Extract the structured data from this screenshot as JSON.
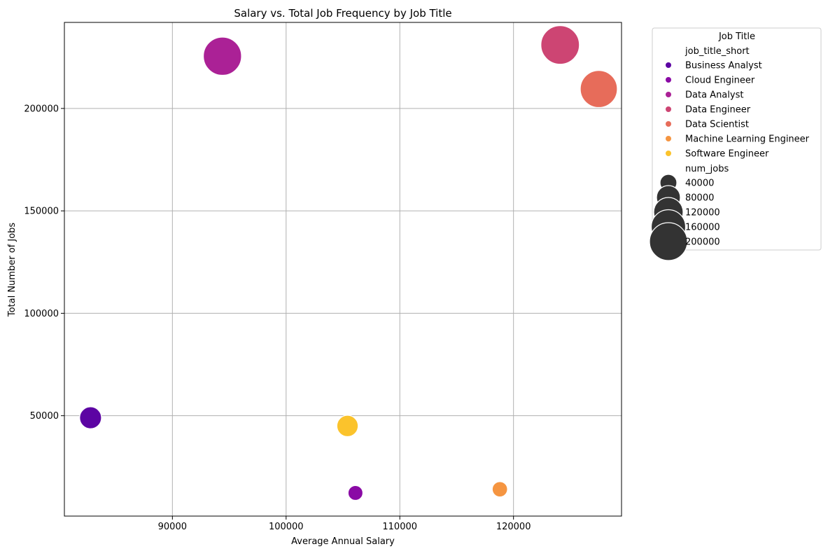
{
  "chart_data": {
    "type": "scatter",
    "title": "Salary vs. Total Job Frequency by Job Title",
    "xlabel": "Average Annual Salary",
    "ylabel": "Total Number of Jobs",
    "xlim": [
      80500,
      129500
    ],
    "ylim": [
      1000,
      242000
    ],
    "xticks": [
      90000,
      100000,
      110000,
      120000
    ],
    "yticks": [
      50000,
      100000,
      150000,
      200000
    ],
    "grid": true,
    "legend_placement": "outside-right",
    "legend": {
      "title": "Job Title",
      "hue_header": "job_title_short",
      "size_header": "num_jobs",
      "size_entries": [
        {
          "label": "40000",
          "value": 40000
        },
        {
          "label": "80000",
          "value": 80000
        },
        {
          "label": "120000",
          "value": 120000
        },
        {
          "label": "160000",
          "value": 160000
        },
        {
          "label": "200000",
          "value": 200000
        }
      ]
    },
    "points": [
      {
        "name": "Business Analyst",
        "x": 82800,
        "y": 49000,
        "size": 49000,
        "color": "#5c04a3"
      },
      {
        "name": "Cloud Engineer",
        "x": 106100,
        "y": 12300,
        "size": 12300,
        "color": "#8a0aa5"
      },
      {
        "name": "Data Analyst",
        "x": 94400,
        "y": 225500,
        "size": 225500,
        "color": "#ab2196"
      },
      {
        "name": "Data Engineer",
        "x": 124100,
        "y": 231000,
        "size": 231000,
        "color": "#cd4573"
      },
      {
        "name": "Data Scientist",
        "x": 127500,
        "y": 209500,
        "size": 209500,
        "color": "#e76c5a"
      },
      {
        "name": "Machine Learning Engineer",
        "x": 118800,
        "y": 14100,
        "size": 14100,
        "color": "#f59541"
      },
      {
        "name": "Software Engineer",
        "x": 105400,
        "y": 45000,
        "size": 45000,
        "color": "#fbc32c"
      }
    ]
  },
  "colors": {
    "size_marker": "#333333",
    "grid": "#b0b0b0"
  }
}
